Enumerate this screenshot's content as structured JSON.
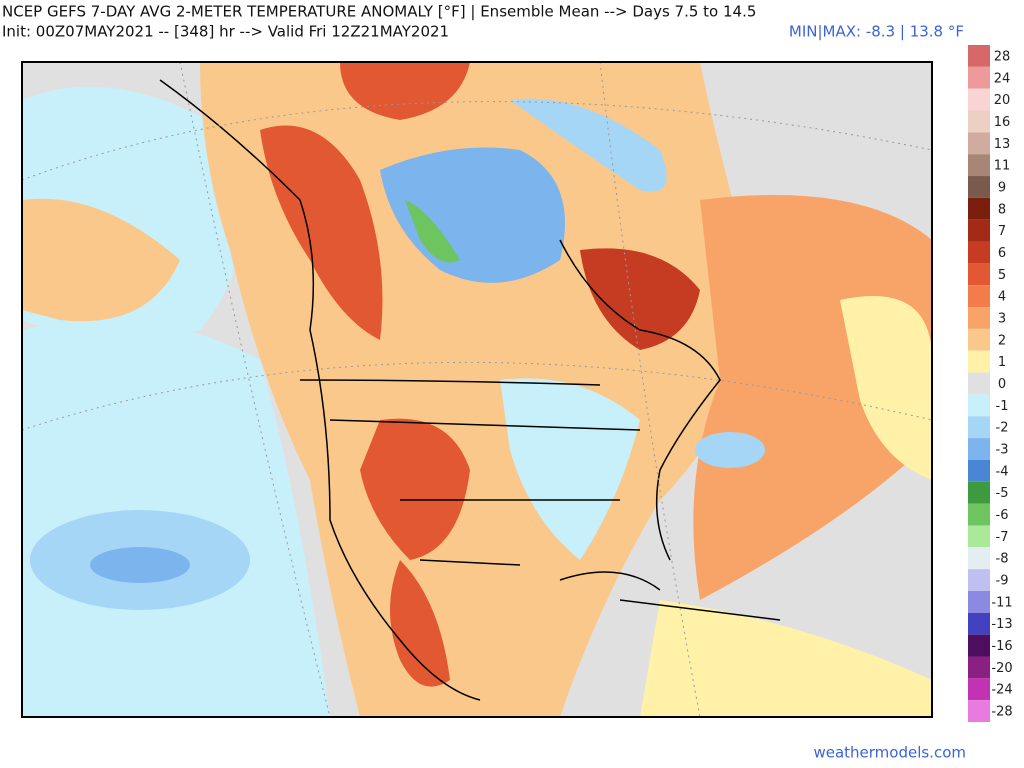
{
  "header": {
    "title": "NCEP GEFS 7-DAY AVG 2-METER TEMPERATURE ANOMALY [°F] | Ensemble Mean --> Days 7.5 to 14.5",
    "subtitle": "Init: 00Z07MAY2021 -- [348] hr --> Valid Fri 12Z21MAY2021",
    "minmax": "MIN|MAX: -8.3 | 13.8 °F"
  },
  "legend": [
    {
      "label": 28,
      "color": "#d86868"
    },
    {
      "label": 24,
      "color": "#ec9a9a"
    },
    {
      "label": 20,
      "color": "#f8d4d4"
    },
    {
      "label": 16,
      "color": "#ecd0c4"
    },
    {
      "label": 13,
      "color": "#d0aca0"
    },
    {
      "label": 11,
      "color": "#a88676"
    },
    {
      "label": 9,
      "color": "#7a5a4c"
    },
    {
      "label": 8,
      "color": "#7a1e0e"
    },
    {
      "label": 7,
      "color": "#a42a18"
    },
    {
      "label": 6,
      "color": "#c63c22"
    },
    {
      "label": 5,
      "color": "#e25832"
    },
    {
      "label": 4,
      "color": "#f27c4a"
    },
    {
      "label": 3,
      "color": "#f8a468"
    },
    {
      "label": 2,
      "color": "#fac88a"
    },
    {
      "label": 1,
      "color": "#fff2a8"
    },
    {
      "label": 0,
      "color": "#e0e0e0"
    },
    {
      "label": -1,
      "color": "#c8f0fa"
    },
    {
      "label": -2,
      "color": "#a6d6f6"
    },
    {
      "label": -3,
      "color": "#7cb4ee"
    },
    {
      "label": -4,
      "color": "#4a86d6"
    },
    {
      "label": -5,
      "color": "#3e9a3e"
    },
    {
      "label": -6,
      "color": "#6ec45e"
    },
    {
      "label": -7,
      "color": "#aae89a"
    },
    {
      "label": -8,
      "color": "#e4eef2"
    },
    {
      "label": -9,
      "color": "#c0c0f0"
    },
    {
      "label": -11,
      "color": "#8a8ae0"
    },
    {
      "label": -13,
      "color": "#4242c0"
    },
    {
      "label": -16,
      "color": "#4e0e5e"
    },
    {
      "label": -20,
      "color": "#8a2082"
    },
    {
      "label": -24,
      "color": "#c232b2"
    },
    {
      "label": -28,
      "color": "#e87ae0"
    }
  ],
  "footer": "weathermodels.com"
}
